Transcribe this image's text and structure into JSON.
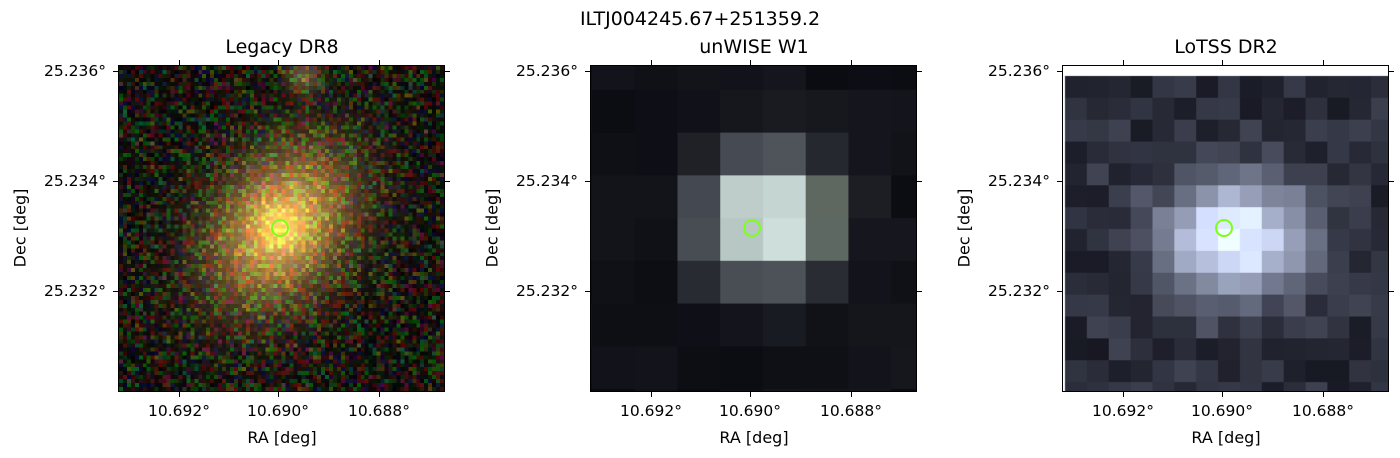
{
  "suptitle": "ILTJ004245.67+251359.2",
  "panels": [
    {
      "title": "Legacy DR8",
      "xlabel": "RA [deg]",
      "ylabel": "Dec [deg]",
      "yticks": [
        "25.236°",
        "25.234°",
        "25.232°"
      ],
      "xticks": [
        "10.692°",
        "10.690°",
        "10.688°"
      ]
    },
    {
      "title": "unWISE W1",
      "xlabel": "RA [deg]",
      "ylabel": "Dec [deg]",
      "yticks": [
        "25.236°",
        "25.234°",
        "25.232°"
      ],
      "xticks": [
        "10.692°",
        "10.690°",
        "10.688°"
      ]
    },
    {
      "title": "LoTSS DR2",
      "xlabel": "RA [deg]",
      "ylabel": "Dec [deg]",
      "yticks": [
        "25.236°",
        "25.234°",
        "25.232°"
      ],
      "xticks": [
        "10.692°",
        "10.690°",
        "10.688°"
      ]
    }
  ],
  "colors": {
    "marker": "#7dff1a"
  }
}
